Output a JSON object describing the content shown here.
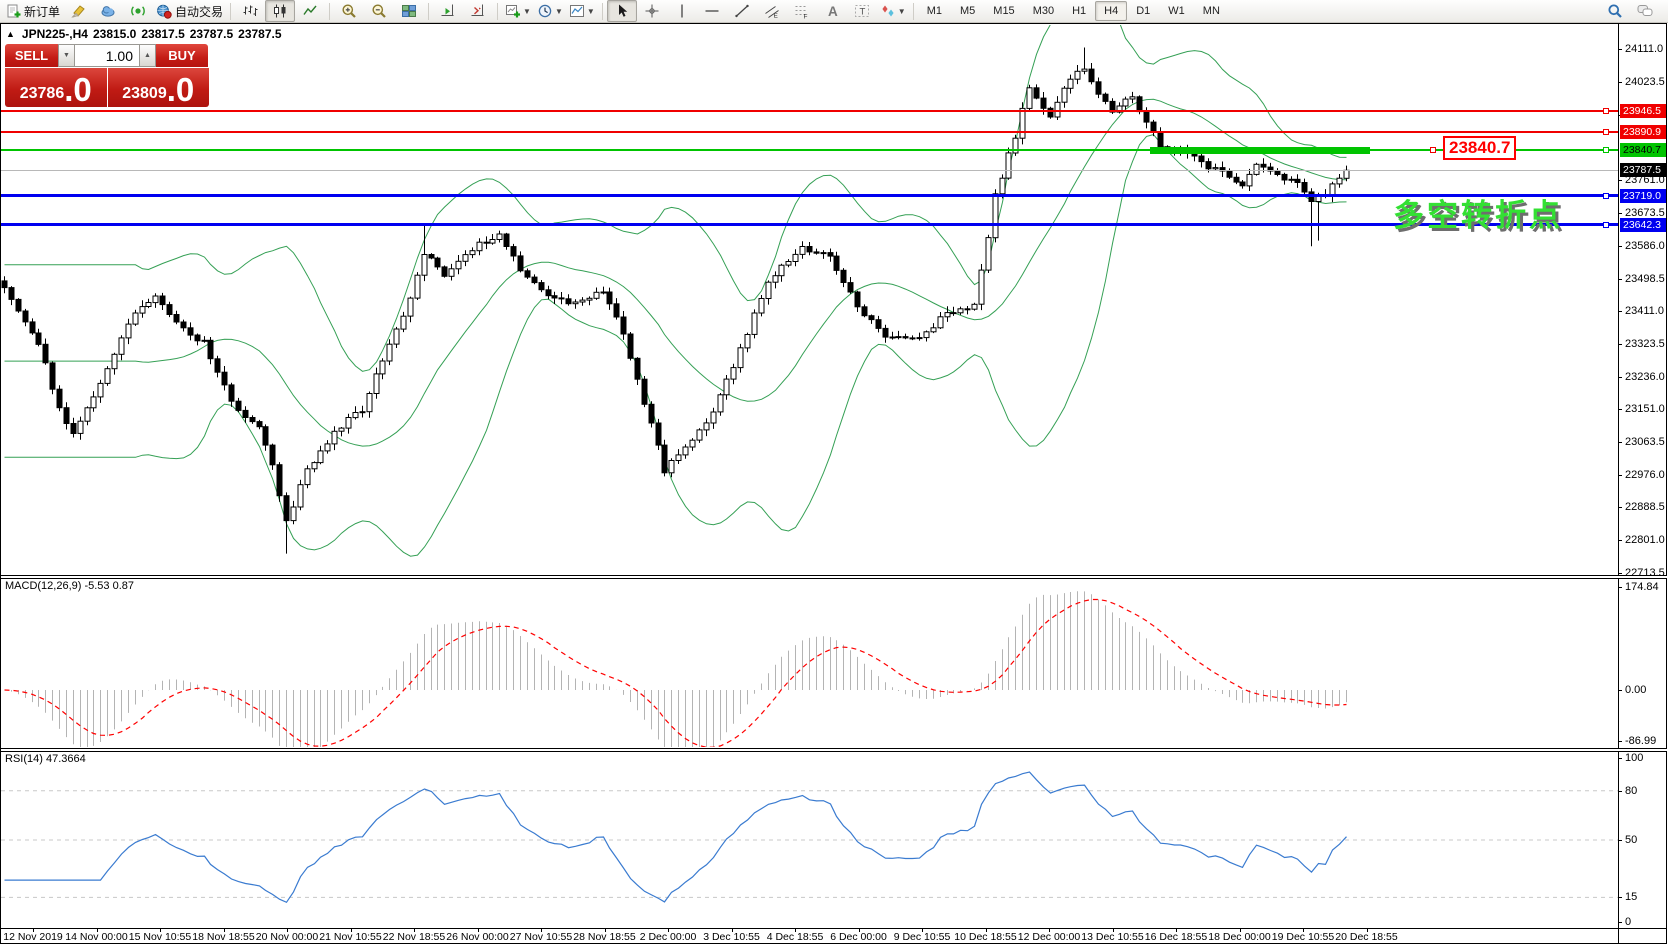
{
  "toolbar": {
    "buttons": [
      {
        "name": "new-order",
        "icon": "doc-plus",
        "label": "新订单"
      },
      {
        "name": "highlighter",
        "icon": "highlighter"
      },
      {
        "name": "mql5-community",
        "icon": "cloud"
      },
      {
        "name": "signals",
        "icon": "signal"
      },
      {
        "name": "auto-trading",
        "icon": "globe-play",
        "label": "自动交易"
      },
      {
        "sep": true
      },
      {
        "name": "bar-chart-mode",
        "icon": "bars"
      },
      {
        "name": "candlestick-mode",
        "icon": "candles",
        "pressed": true
      },
      {
        "name": "line-chart-mode",
        "icon": "linemode"
      },
      {
        "sep": true
      },
      {
        "name": "zoom-in",
        "icon": "zoom-in"
      },
      {
        "name": "zoom-out",
        "icon": "zoom-out"
      },
      {
        "name": "tile-windows",
        "icon": "tiles"
      },
      {
        "sep": true
      },
      {
        "name": "auto-scroll",
        "icon": "scroll-end"
      },
      {
        "name": "chart-shift",
        "icon": "shift"
      },
      {
        "sep": true
      },
      {
        "name": "new-chart",
        "icon": "chart-plus",
        "dropdown": true
      },
      {
        "name": "periods",
        "icon": "clock",
        "dropdown": true
      },
      {
        "name": "templates",
        "icon": "template",
        "dropdown": true
      },
      {
        "sep": true
      },
      {
        "name": "cursor",
        "icon": "cursor",
        "pressed": true
      },
      {
        "name": "crosshair",
        "icon": "crosshair"
      },
      {
        "name": "vertical-line",
        "icon": "vline"
      },
      {
        "name": "horizontal-line",
        "icon": "hline"
      },
      {
        "name": "trendline",
        "icon": "trend"
      },
      {
        "name": "equidistant-channel",
        "icon": "channel"
      },
      {
        "name": "fibonacci",
        "icon": "fibo"
      },
      {
        "name": "text",
        "icon": "text-a"
      },
      {
        "name": "text-label",
        "icon": "text-t"
      },
      {
        "name": "arrows",
        "icon": "shapes",
        "dropdown": true
      },
      {
        "sep": true
      }
    ],
    "timeframes": [
      "M1",
      "M5",
      "M15",
      "M30",
      "H1",
      "H4",
      "D1",
      "W1",
      "MN"
    ],
    "active_timeframe": "H4",
    "right_icons": [
      {
        "name": "search",
        "icon": "magnifier"
      },
      {
        "name": "chat",
        "icon": "chat"
      }
    ]
  },
  "window": {
    "collapse_icon": "▲",
    "title": "JPN225-,H4",
    "ohlc": {
      "open": "23815.0",
      "high": "23817.5",
      "low": "23787.5",
      "close": "23787.5"
    }
  },
  "trade_panel": {
    "sell_label": "SELL",
    "buy_label": "BUY",
    "volume": "1.00",
    "spin_down": "▼",
    "spin_up": "▲",
    "sell_price_int": "23786",
    "sell_price_dec": ".0",
    "buy_price_int": "23809",
    "buy_price_dec": ".0"
  },
  "price_axis": {
    "ticks": [
      "24111.0",
      "24023.5",
      "23936.0",
      "23761.0",
      "23673.5",
      "23586.0",
      "23498.5",
      "23411.0",
      "23323.5",
      "23236.0",
      "23151.0",
      "23063.5",
      "22976.0",
      "22888.5",
      "22801.0",
      "22713.5"
    ]
  },
  "levels": [
    {
      "name": "resistance-line-1",
      "price": 23946.5,
      "label": "23946.5",
      "color": "#f00000",
      "text_color": "#ffffff",
      "thickness": 2
    },
    {
      "name": "resistance-line-2",
      "price": 23890.9,
      "label": "23890.9",
      "color": "#f00000",
      "text_color": "#ffffff",
      "thickness": 2
    },
    {
      "name": "pivot-line-green",
      "price": 23840.7,
      "label": "23840.7",
      "color": "#00c400",
      "text_color": "#000000",
      "thickness": 2,
      "thick_segment": [
        1150,
        1370
      ]
    },
    {
      "name": "support-line-1",
      "price": 23719.0,
      "label": "23719.0",
      "color": "#0000f0",
      "text_color": "#ffffff",
      "thickness": 3
    },
    {
      "name": "support-line-2",
      "price": 23642.3,
      "label": "23642.3",
      "color": "#0000f0",
      "text_color": "#ffffff",
      "thickness": 3
    }
  ],
  "current_price": {
    "value": 23787.5,
    "label": "23787.5",
    "badge_bg": "#000000",
    "badge_text": "#ffffff"
  },
  "price_tag": {
    "label": "23840.7"
  },
  "annotation": {
    "text": "多空转折点",
    "color": "#33e033"
  },
  "macd_panel": {
    "label": "MACD(12,26,9) -5.53 0.87",
    "axis": [
      "174.84",
      "0.00",
      "-86.99"
    ]
  },
  "rsi_panel": {
    "label": "RSI(14) 47.3664",
    "axis": [
      "100",
      "80",
      "50",
      "15",
      "0"
    ],
    "level_lines": [
      80,
      50,
      15
    ]
  },
  "time_axis": {
    "labels": [
      "12 Nov 2019",
      "14 Nov 00:00",
      "15 Nov 10:55",
      "18 Nov 18:55",
      "20 Nov 00:00",
      "21 Nov 10:55",
      "22 Nov 18:55",
      "26 Nov 00:00",
      "27 Nov 10:55",
      "28 Nov 18:55",
      "2 Dec 00:00",
      "3 Dec 10:55",
      "4 Dec 18:55",
      "6 Dec 00:00",
      "9 Dec 10:55",
      "10 Dec 18:55",
      "12 Dec 00:00",
      "13 Dec 10:55",
      "16 Dec 18:55",
      "18 Dec 00:00",
      "19 Dec 10:55",
      "20 Dec 18:55"
    ]
  },
  "chart_data": {
    "type": "candlestick",
    "symbol": "JPN225-",
    "timeframe": "H4",
    "bars": 196,
    "price_range": [
      22713.5,
      24111.0
    ],
    "axis_tick_step": 87.5,
    "close_waypoints": [
      [
        0,
        23480
      ],
      [
        2,
        23420
      ],
      [
        5,
        23330
      ],
      [
        8,
        23150
      ],
      [
        10,
        23080
      ],
      [
        12,
        23150
      ],
      [
        14,
        23220
      ],
      [
        18,
        23380
      ],
      [
        22,
        23460
      ],
      [
        25,
        23380
      ],
      [
        27,
        23340
      ],
      [
        29,
        23330
      ],
      [
        31,
        23250
      ],
      [
        33,
        23170
      ],
      [
        37,
        23100
      ],
      [
        39,
        23000
      ],
      [
        41,
        22850
      ],
      [
        44,
        22990
      ],
      [
        48,
        23090
      ],
      [
        52,
        23150
      ],
      [
        55,
        23280
      ],
      [
        59,
        23440
      ],
      [
        61,
        23570
      ],
      [
        64,
        23500
      ],
      [
        66,
        23540
      ],
      [
        68,
        23580
      ],
      [
        72,
        23620
      ],
      [
        75,
        23520
      ],
      [
        79,
        23450
      ],
      [
        83,
        23430
      ],
      [
        87,
        23470
      ],
      [
        90,
        23350
      ],
      [
        91,
        23290
      ],
      [
        94,
        23110
      ],
      [
        96,
        22985
      ],
      [
        100,
        23070
      ],
      [
        103,
        23140
      ],
      [
        107,
        23310
      ],
      [
        111,
        23490
      ],
      [
        114,
        23550
      ],
      [
        116,
        23580
      ],
      [
        120,
        23560
      ],
      [
        124,
        23420
      ],
      [
        128,
        23350
      ],
      [
        133,
        23340
      ],
      [
        137,
        23410
      ],
      [
        141,
        23430
      ],
      [
        143,
        23600
      ],
      [
        144,
        23720
      ],
      [
        147,
        23880
      ],
      [
        149,
        24010
      ],
      [
        151,
        23960
      ],
      [
        152,
        23930
      ],
      [
        154,
        24000
      ],
      [
        156,
        24050
      ],
      [
        157,
        24060
      ],
      [
        159,
        23990
      ],
      [
        161,
        23950
      ],
      [
        163,
        23970
      ],
      [
        164,
        23985
      ],
      [
        166,
        23915
      ],
      [
        168,
        23855
      ],
      [
        171,
        23845
      ],
      [
        174,
        23805
      ],
      [
        177,
        23780
      ],
      [
        180,
        23745
      ],
      [
        182,
        23800
      ],
      [
        185,
        23770
      ],
      [
        188,
        23750
      ],
      [
        190,
        23710
      ],
      [
        192,
        23725
      ],
      [
        195,
        23787.5
      ]
    ],
    "wick_overrides": [
      [
        41,
        "low",
        22765
      ],
      [
        61,
        "high",
        23645
      ],
      [
        157,
        "high",
        24115
      ],
      [
        190,
        "low",
        23585
      ],
      [
        191,
        "low",
        23600
      ]
    ],
    "last_close": 23787.5,
    "indicators": {
      "bollinger": {
        "period": 20,
        "deviation": 2,
        "color": "#35a055"
      },
      "macd": {
        "fast": 12,
        "slow": 26,
        "signal": 9,
        "value": -5.53,
        "signal_value": 0.87,
        "axis_range": [
          -86.99,
          174.84
        ],
        "histogram_color": "#b4b4b4",
        "signal_color": "#ff0000"
      },
      "rsi": {
        "period": 14,
        "value": 47.3664,
        "axis_range": [
          0,
          100
        ],
        "line_color": "#3a7bd0"
      }
    }
  }
}
